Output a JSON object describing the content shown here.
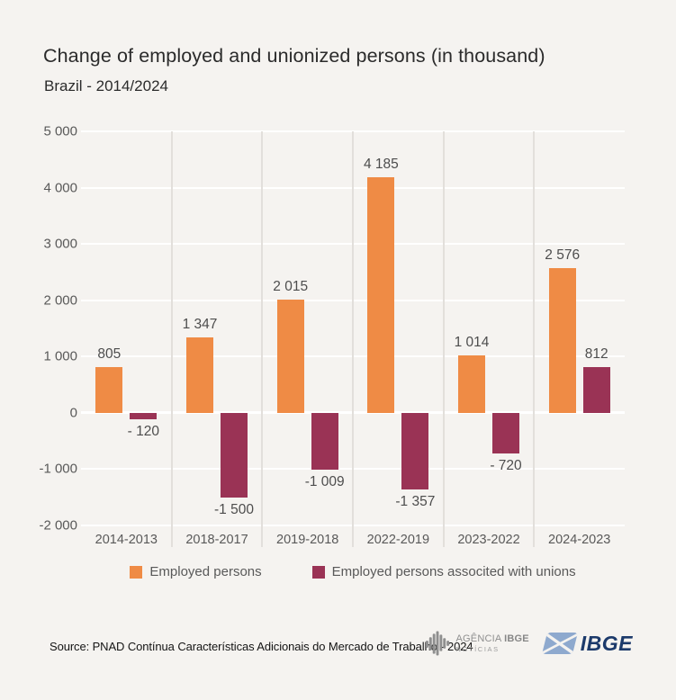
{
  "title": "Change of employed and unionized persons (in thousand)",
  "subtitle": "Brazil - 2014/2024",
  "chart_data": {
    "type": "bar",
    "title": "Change of employed and unionized persons (in thousand)",
    "subtitle": "Brazil - 2014/2024",
    "categories": [
      "2014-2013",
      "2018-2017",
      "2019-2018",
      "2022-2019",
      "2023-2022",
      "2024-2023"
    ],
    "series": [
      {
        "name": "Employed persons",
        "color": "#EF8B45",
        "values": [
          805,
          1347,
          2015,
          4185,
          1014,
          2576
        ],
        "value_labels": [
          "805",
          "1 347",
          "2 015",
          "4 185",
          "1 014",
          "2 576"
        ]
      },
      {
        "name": "Employed persons associted with unions",
        "color": "#9A3355",
        "values": [
          -120,
          -1500,
          -1009,
          -1357,
          -720,
          812
        ],
        "value_labels": [
          "- 120",
          "-1 500",
          "-1 009",
          "-1 357",
          "- 720",
          "812"
        ]
      }
    ],
    "ylim": [
      -2000,
      5000
    ],
    "ytick_values": [
      5000,
      4000,
      3000,
      2000,
      1000,
      0,
      -1000,
      -2000
    ],
    "ytick_labels": [
      "5 000",
      "4 000",
      "3 000",
      "2 000",
      "1 000",
      "0",
      "-1 000",
      "-2 000"
    ],
    "grid": true,
    "gridline_color": "#FFFFFF",
    "legend_position": "bottom"
  },
  "footer": {
    "source": "Source: PNAD Contínua Características Adicionais do Mercado de Trabalho - 2024",
    "agencia_logo": {
      "line1_a": "AGÊNCIA",
      "line1_b": "IBGE",
      "line2": "NOTÍCIAS"
    },
    "ibge_logo": {
      "text": "IBGE"
    }
  },
  "colors": {
    "background": "#F5F3F0",
    "divider": "#E2DFDB",
    "axis_text": "#595959",
    "value_text": "#4D4D4D",
    "title_text": "#2B2B2B",
    "ibge_navy": "#1C3A6B",
    "ibge_light_blue": "#8EA9CE",
    "agencia_gray": "#8F8F8F"
  }
}
